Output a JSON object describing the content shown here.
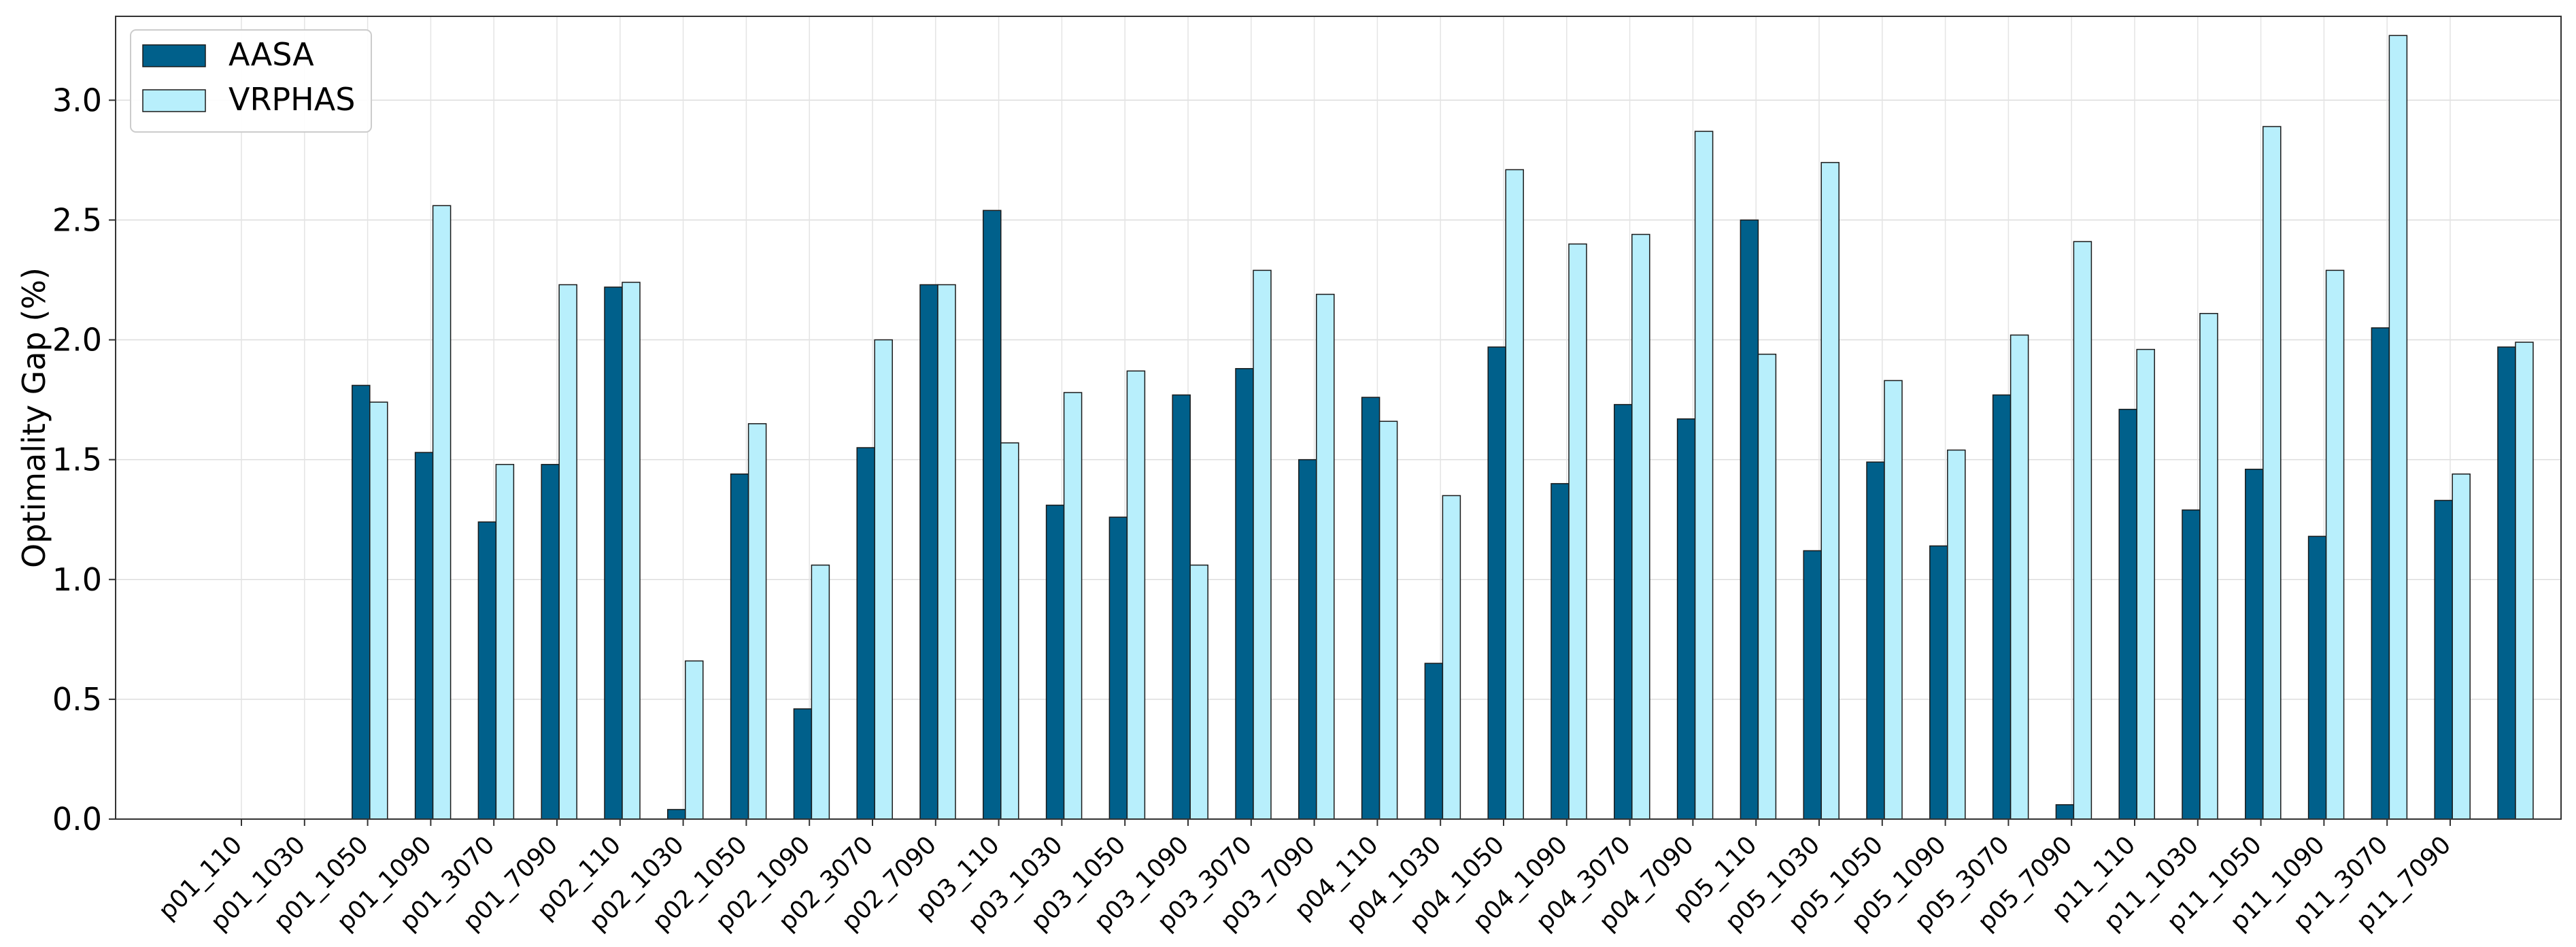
{
  "chart_data": {
    "type": "bar",
    "title": "",
    "xlabel": "",
    "ylabel": "Optimality Gap (%)",
    "ylim": [
      0,
      3.35
    ],
    "yticks": [
      "0.0",
      "0.5",
      "1.0",
      "1.5",
      "2.0",
      "2.5",
      "3.0"
    ],
    "grid": true,
    "legend_position": "top-left",
    "categories": [
      "p01_110",
      "p01_1030",
      "p01_1050",
      "p01_1090",
      "p01_3070",
      "p01_7090",
      "p02_110",
      "p02_1030",
      "p02_1050",
      "p02_1090",
      "p02_3070",
      "p02_7090",
      "p03_110",
      "p03_1030",
      "p03_1050",
      "p03_1090",
      "p03_3070",
      "p03_7090",
      "p04_110",
      "p04_1030",
      "p04_1050",
      "p04_1090",
      "p04_3070",
      "p04_7090",
      "p05_110",
      "p05_1030",
      "p05_1050",
      "p05_1090",
      "p05_3070",
      "p05_7090",
      "p11_110",
      "p11_1030",
      "p11_1050",
      "p11_1090",
      "p11_3070",
      "p11_7090"
    ],
    "series": [
      {
        "name": "AASA",
        "color": "#00608b",
        "values": [
          0.0,
          1.81,
          1.53,
          1.24,
          1.48,
          2.22,
          0.04,
          1.44,
          0.46,
          1.55,
          2.23,
          2.54,
          1.31,
          1.26,
          1.77,
          1.88,
          1.5,
          1.76,
          0.65,
          1.97,
          1.4,
          1.73,
          1.67,
          2.5,
          1.12,
          1.49,
          1.14,
          1.77,
          0.06,
          1.71,
          1.29,
          1.46,
          1.18,
          2.05,
          1.33,
          1.97
        ]
      },
      {
        "name": "VRPHAS",
        "color": "#b8effc",
        "values": [
          0.0,
          1.74,
          2.56,
          1.48,
          2.23,
          2.24,
          0.66,
          1.65,
          1.06,
          2.0,
          2.23,
          1.57,
          1.78,
          1.87,
          1.06,
          2.29,
          2.19,
          1.66,
          1.35,
          2.71,
          2.4,
          2.44,
          2.87,
          1.94,
          2.74,
          1.83,
          1.54,
          2.02,
          2.41,
          1.96,
          2.11,
          2.89,
          2.29,
          3.27,
          1.44,
          1.99
        ]
      }
    ]
  }
}
